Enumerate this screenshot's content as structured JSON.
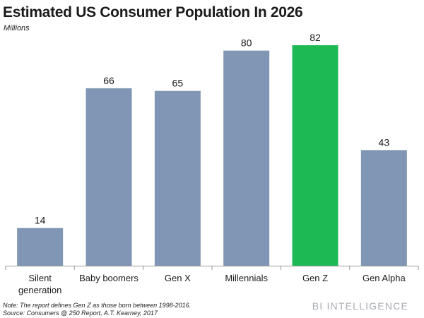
{
  "header": {
    "title": "Estimated US Consumer Population In 2026",
    "subtitle": "Millions"
  },
  "footer": {
    "note": "Note: The report defines Gen Z as those born between 1998-2016.",
    "source": "Source: Consumers @ 250 Report, A.T. Kearney, 2017",
    "brand": "BI INTELLIGENCE"
  },
  "colors": {
    "bar": "#8096b4",
    "highlight": "#1db954",
    "axis": "#9a9a9a"
  },
  "chart_data": {
    "type": "bar",
    "title": "Estimated US Consumer Population In 2026",
    "ylabel": "Millions",
    "xlabel": "",
    "categories": [
      "Silent generation",
      "Baby boomers",
      "Gen X",
      "Millennials",
      "Gen Z",
      "Gen Alpha"
    ],
    "category_lines": [
      [
        "Silent",
        "generation"
      ],
      [
        "Baby boomers"
      ],
      [
        "Gen X"
      ],
      [
        "Millennials"
      ],
      [
        "Gen Z"
      ],
      [
        "Gen Alpha"
      ]
    ],
    "values": [
      14,
      66,
      65,
      80,
      82,
      43
    ],
    "highlight_category": "Gen Z",
    "ylim": [
      0,
      90
    ],
    "grid": false,
    "data_labels": true
  }
}
